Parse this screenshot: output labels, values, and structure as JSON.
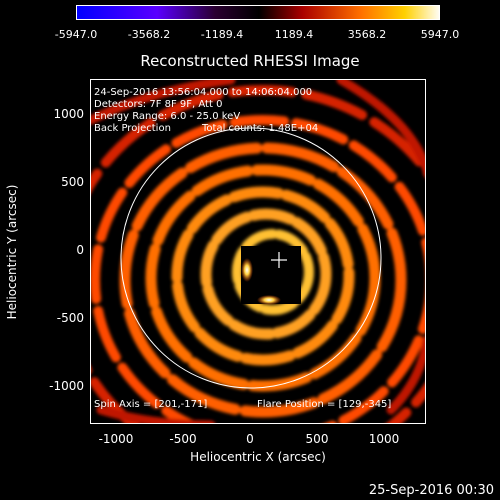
{
  "colorbar": {
    "ticks": [
      "-5947.0",
      "-3568.2",
      "-1189.4",
      "1189.4",
      "3568.2",
      "5947.0"
    ],
    "colors": [
      "#0000ff",
      "#4b00ff",
      "#000000",
      "#8b0000",
      "#ff5a00",
      "#ffd000",
      "#ffffff"
    ]
  },
  "title": "Reconstructed RHESSI Image",
  "info": {
    "line1": "24-Sep-2016 13:56:04.000 to 14:06:04.000",
    "line2": "Detectors: 7F 8F 9F, Att 0",
    "line3": "Energy Range: 6.0 - 25.0 keV",
    "line4_a": "Back Projection",
    "line4_b": "Total counts: 1.48E+04",
    "spin_axis": "Spin Axis = [201,-171]",
    "flare_position": "Flare Position = [129,-345]"
  },
  "axes": {
    "xlabel": "Heliocentric X (arcsec)",
    "ylabel": "Heliocentric Y (arcsec)",
    "xticks": [
      "-1000",
      "-500",
      "0",
      "500",
      "1000"
    ],
    "yticks": [
      "1000",
      "500",
      "0",
      "-500",
      "-1000"
    ]
  },
  "footer": {
    "timestamp": "25-Sep-2016 00:30"
  }
}
